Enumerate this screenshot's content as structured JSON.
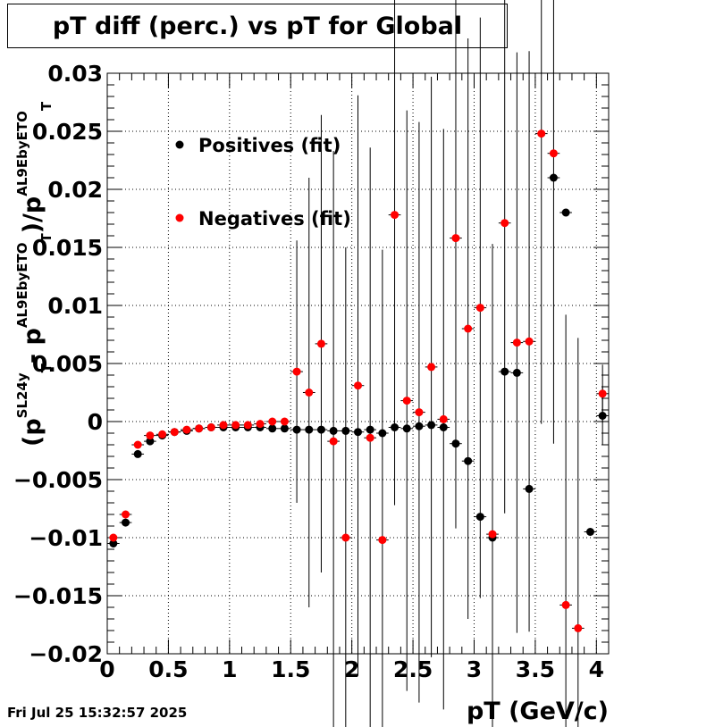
{
  "chart_data": {
    "type": "scatter",
    "title": "pT diff (perc.) vs pT for Global",
    "xlabel": "pT (GeV/c)",
    "ylabel": {
      "open": "(p",
      "sl_sup": "SL24y",
      "t1": "T",
      "minus": "- p",
      "al_sup1": "AL9EbyETO",
      "t2": "T",
      "div": ")/p",
      "al_sup2": "AL9EbyETO",
      "t3": "T"
    },
    "xlim": [
      0,
      4.1
    ],
    "ylim": [
      -0.02,
      0.03
    ],
    "x_ticks": [
      "0",
      "0.5",
      "1",
      "1.5",
      "2",
      "2.5",
      "3",
      "3.5",
      "4"
    ],
    "y_ticks": [
      "−0.02",
      "−0.015",
      "−0.01",
      "−0.005",
      "0",
      "0.005",
      "0.01",
      "0.015",
      "0.02",
      "0.025",
      "0.03"
    ],
    "grid": true,
    "legend_position": "upper-left",
    "series": [
      {
        "name": "Positives (fit)",
        "color": "#000000",
        "points": [
          {
            "x": 0.05,
            "y": -0.0105,
            "err": 0.0003
          },
          {
            "x": 0.15,
            "y": -0.0087,
            "err": 0.0002
          },
          {
            "x": 0.25,
            "y": -0.0028,
            "err": 0.0002
          },
          {
            "x": 0.35,
            "y": -0.0017,
            "err": 0.0002
          },
          {
            "x": 0.45,
            "y": -0.0012,
            "err": 0.0002
          },
          {
            "x": 0.55,
            "y": -0.0009,
            "err": 0.0002
          },
          {
            "x": 0.65,
            "y": -0.0008,
            "err": 0.0002
          },
          {
            "x": 0.75,
            "y": -0.0006,
            "err": 0.0002
          },
          {
            "x": 0.85,
            "y": -0.0005,
            "err": 0.0002
          },
          {
            "x": 0.95,
            "y": -0.0005,
            "err": 0.0002
          },
          {
            "x": 1.05,
            "y": -0.0005,
            "err": 0.0002
          },
          {
            "x": 1.15,
            "y": -0.0005,
            "err": 0.0002
          },
          {
            "x": 1.25,
            "y": -0.0005,
            "err": 0.0002
          },
          {
            "x": 1.35,
            "y": -0.0006,
            "err": 0.0003
          },
          {
            "x": 1.45,
            "y": -0.0006,
            "err": 0.0003
          },
          {
            "x": 1.55,
            "y": -0.0007,
            "err": 0.0003
          },
          {
            "x": 1.65,
            "y": -0.0007,
            "err": 0.0003
          },
          {
            "x": 1.75,
            "y": -0.0007,
            "err": 0.0003
          },
          {
            "x": 1.85,
            "y": -0.0008,
            "err": 0.0003
          },
          {
            "x": 1.95,
            "y": -0.0008,
            "err": 0.0003
          },
          {
            "x": 2.05,
            "y": -0.0009,
            "err": 0.0003
          },
          {
            "x": 2.15,
            "y": -0.0007,
            "err": 0.0003
          },
          {
            "x": 2.25,
            "y": -0.001,
            "err": 0.0003
          },
          {
            "x": 2.35,
            "y": -0.0005,
            "err": 0.0003
          },
          {
            "x": 2.45,
            "y": -0.0006,
            "err": 0.0003
          },
          {
            "x": 2.55,
            "y": -0.0004,
            "err": 0.0003
          },
          {
            "x": 2.65,
            "y": -0.0003,
            "err": 0.0003
          },
          {
            "x": 2.75,
            "y": -0.0005,
            "err": 0.0003
          },
          {
            "x": 2.85,
            "y": -0.0019,
            "err": 0.0003
          },
          {
            "x": 2.95,
            "y": -0.0034,
            "err": 0.0003
          },
          {
            "x": 3.05,
            "y": -0.0082,
            "err": 0.0003
          },
          {
            "x": 3.15,
            "y": -0.01,
            "err": 0.0003
          },
          {
            "x": 3.25,
            "y": 0.0043,
            "err": 0.0003
          },
          {
            "x": 3.35,
            "y": 0.0042,
            "err": 0.0003
          },
          {
            "x": 3.45,
            "y": -0.0058,
            "err": 0.0003
          },
          {
            "x": 3.65,
            "y": 0.021,
            "err": 0.0003
          },
          {
            "x": 3.75,
            "y": 0.018,
            "err": 0.0003
          },
          {
            "x": 3.95,
            "y": -0.0095,
            "err": 0.0003
          },
          {
            "x": 4.05,
            "y": 0.0005,
            "err": 0.0025
          }
        ]
      },
      {
        "name": "Negatives (fit)",
        "color": "#ff0000",
        "points": [
          {
            "x": 0.05,
            "y": -0.01,
            "err": 0.0003
          },
          {
            "x": 0.15,
            "y": -0.008,
            "err": 0.0002
          },
          {
            "x": 0.25,
            "y": -0.002,
            "err": 0.0002
          },
          {
            "x": 0.35,
            "y": -0.0012,
            "err": 0.0002
          },
          {
            "x": 0.45,
            "y": -0.0011,
            "err": 0.0002
          },
          {
            "x": 0.55,
            "y": -0.0009,
            "err": 0.0002
          },
          {
            "x": 0.65,
            "y": -0.0007,
            "err": 0.0002
          },
          {
            "x": 0.75,
            "y": -0.0006,
            "err": 0.0002
          },
          {
            "x": 0.85,
            "y": -0.0005,
            "err": 0.0002
          },
          {
            "x": 0.95,
            "y": -0.0003,
            "err": 0.0002
          },
          {
            "x": 1.05,
            "y": -0.0003,
            "err": 0.0002
          },
          {
            "x": 1.15,
            "y": -0.0003,
            "err": 0.0002
          },
          {
            "x": 1.25,
            "y": -0.0002,
            "err": 0.0002
          },
          {
            "x": 1.35,
            "y": 0.0,
            "err": 0.0003
          },
          {
            "x": 1.45,
            "y": 0.0,
            "err": 0.0003
          },
          {
            "x": 1.55,
            "y": 0.0043,
            "err": 0.0113
          },
          {
            "x": 1.65,
            "y": 0.0025,
            "err": 0.0185
          },
          {
            "x": 1.75,
            "y": 0.0067,
            "err": 0.0197
          },
          {
            "x": 1.85,
            "y": -0.0017,
            "err": 0.025
          },
          {
            "x": 1.95,
            "y": -0.01,
            "err": 0.025
          },
          {
            "x": 2.05,
            "y": 0.0031,
            "err": 0.025
          },
          {
            "x": 2.15,
            "y": -0.0014,
            "err": 0.025
          },
          {
            "x": 2.25,
            "y": -0.0102,
            "err": 0.025
          },
          {
            "x": 2.35,
            "y": 0.0178,
            "err": 0.025
          },
          {
            "x": 2.45,
            "y": 0.0018,
            "err": 0.025
          },
          {
            "x": 2.55,
            "y": 0.0008,
            "err": 0.025
          },
          {
            "x": 2.65,
            "y": 0.0047,
            "err": 0.025
          },
          {
            "x": 2.75,
            "y": 0.0002,
            "err": 0.025
          },
          {
            "x": 2.85,
            "y": 0.0158,
            "err": 0.025
          },
          {
            "x": 2.95,
            "y": 0.008,
            "err": 0.025
          },
          {
            "x": 3.05,
            "y": 0.0098,
            "err": 0.025
          },
          {
            "x": 3.15,
            "y": -0.0097,
            "err": 0.025
          },
          {
            "x": 3.25,
            "y": 0.0171,
            "err": 0.025
          },
          {
            "x": 3.35,
            "y": 0.0068,
            "err": 0.025
          },
          {
            "x": 3.45,
            "y": 0.0069,
            "err": 0.025
          },
          {
            "x": 3.55,
            "y": 0.0248,
            "err": 0.025
          },
          {
            "x": 3.65,
            "y": 0.0231,
            "err": 0.025
          },
          {
            "x": 3.75,
            "y": -0.0158,
            "err": 0.025
          },
          {
            "x": 3.85,
            "y": -0.0178,
            "err": 0.025
          },
          {
            "x": 4.05,
            "y": 0.0024,
            "err": 0.0025
          }
        ]
      }
    ]
  },
  "footer": {
    "timestamp": "Fri Jul 25 15:32:57 2025"
  }
}
